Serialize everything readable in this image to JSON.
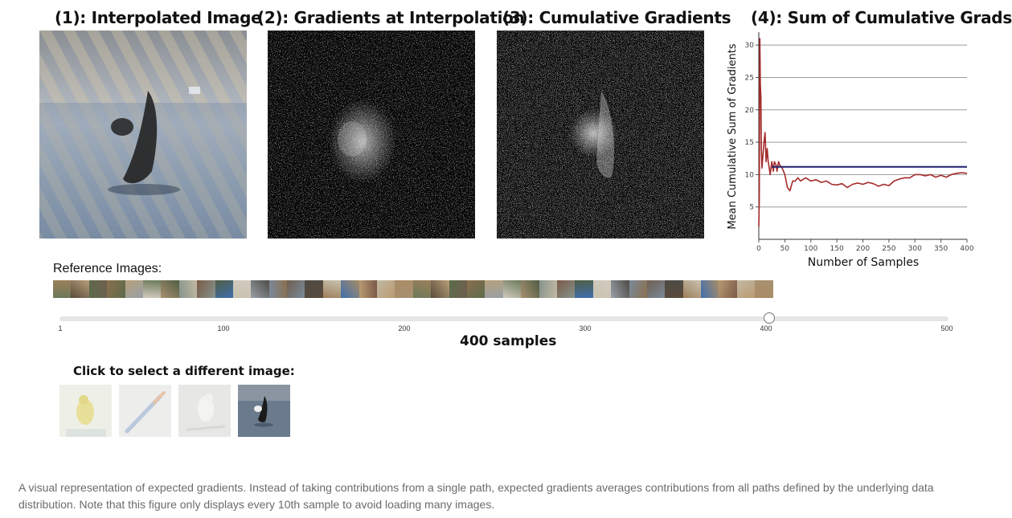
{
  "panels": [
    {
      "title": "(1): Interpolated Image"
    },
    {
      "title": "(2): Gradients at Interpolation"
    },
    {
      "title": "(3): Cumulative Gradients"
    },
    {
      "title": "(4): Sum of Cumulative Grads"
    }
  ],
  "chart_data": {
    "type": "line",
    "title": "(4): Sum of Cumulative Grads",
    "xlabel": "Number of Samples",
    "ylabel": "Mean Cumulative Sum of Gradients",
    "xlim": [
      0,
      400
    ],
    "ylim": [
      0,
      32
    ],
    "xticks": [
      0,
      50,
      100,
      150,
      200,
      250,
      300,
      350,
      400
    ],
    "yticks": [
      5,
      10,
      15,
      20,
      25,
      30
    ],
    "grid": "horizontal",
    "series": [
      {
        "kind": "line",
        "color": "#a52a2a",
        "x": [
          0,
          1,
          2,
          3,
          4,
          5,
          6,
          8,
          10,
          12,
          14,
          16,
          18,
          20,
          22,
          25,
          28,
          30,
          33,
          35,
          38,
          40,
          45,
          50,
          55,
          60,
          65,
          70,
          75,
          80,
          90,
          100,
          110,
          120,
          130,
          140,
          150,
          160,
          170,
          180,
          190,
          200,
          210,
          220,
          230,
          240,
          250,
          260,
          270,
          280,
          290,
          300,
          310,
          320,
          330,
          340,
          350,
          360,
          370,
          380,
          390,
          400
        ],
        "y": [
          2,
          6,
          31,
          24,
          22,
          14,
          11,
          13,
          15,
          16.5,
          12,
          14,
          12,
          11,
          10,
          12,
          10.5,
          12,
          11.5,
          10.5,
          12,
          11.5,
          11,
          10,
          8,
          7.5,
          9,
          9,
          9.5,
          9,
          9.5,
          9,
          9.2,
          8.8,
          9,
          8.5,
          8.4,
          8.6,
          8,
          8.5,
          8.7,
          8.5,
          8.8,
          8.6,
          8.2,
          8.5,
          8.3,
          9,
          9.3,
          9.5,
          9.5,
          10,
          10,
          9.8,
          10,
          9.6,
          9.9,
          9.6,
          10,
          10.2,
          10.3,
          10.2
        ]
      },
      {
        "kind": "hline",
        "color": "#1f1f6e",
        "x": [
          25,
          400
        ],
        "y": [
          11.2,
          11.2
        ]
      }
    ]
  },
  "reference": {
    "label": "Reference Images:",
    "count": 40
  },
  "slider": {
    "value": 400,
    "min": 1,
    "max": 500,
    "ticks": [
      "1",
      "100",
      "200",
      "300",
      "400",
      "500"
    ],
    "label": "400 samples"
  },
  "select": {
    "label": "Click to select a different image:",
    "images": [
      "goldfinch",
      "paintbrush",
      "bird",
      "killer-whale"
    ]
  },
  "caption": "A visual representation of expected gradients. Instead of taking contributions from a single path, expected gradients averages contributions from all paths defined by the underlying data distribution. Note that this figure only displays every 10th sample to avoid loading many images."
}
